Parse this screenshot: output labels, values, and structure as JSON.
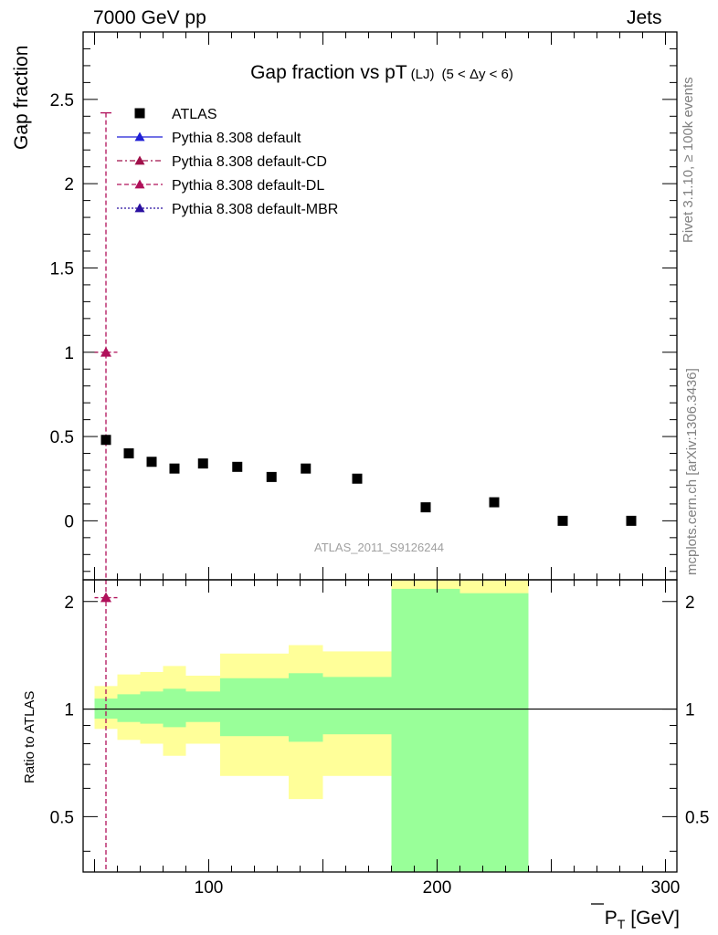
{
  "header": {
    "left": "7000 GeV pp",
    "right": "Jets"
  },
  "side_labels": {
    "rivet": "Rivet 3.1.10, ≥ 100k events",
    "mcplots": "mcplots.cern.ch [arXiv:1306.3436]"
  },
  "chart_data": {
    "type": "scatter",
    "title": "Gap fraction vs pT",
    "title_sub": "(LJ)",
    "title_range": "(5 < Δy < 6)",
    "xlabel": "P_T [GeV]",
    "xlabel_main": "P",
    "xlabel_sub": "T",
    "xlabel_unit": "[GeV]",
    "ylabel": "Gap fraction",
    "ratio_ylabel": "Ratio to ATLAS",
    "watermark": "ATLAS_2011_S9126244",
    "xlim": [
      45,
      305
    ],
    "ylim": [
      -0.35,
      2.9
    ],
    "ratio_ylim": [
      0.35,
      2.3
    ],
    "ratio_log": true,
    "xticks": [
      100,
      200,
      300
    ],
    "yticks": [
      0,
      0.5,
      1,
      1.5,
      2,
      2.5
    ],
    "ratio_yticks": [
      0.5,
      1,
      2
    ],
    "legend_position": "top-left",
    "legend": [
      {
        "name": "ATLAS",
        "color": "#000000",
        "marker": "square",
        "line": "none"
      },
      {
        "name": "Pythia 8.308 default",
        "color": "#1f1fd6",
        "marker": "triangle",
        "line": "solid"
      },
      {
        "name": "Pythia 8.308 default-CD",
        "color": "#a0104a",
        "marker": "triangle",
        "line": "dashdot"
      },
      {
        "name": "Pythia 8.308 default-DL",
        "color": "#b0105a",
        "marker": "triangle",
        "line": "dashed"
      },
      {
        "name": "Pythia 8.308 default-MBR",
        "color": "#2a10a0",
        "marker": "triangle",
        "line": "dotted"
      }
    ],
    "series": [
      {
        "name": "ATLAS",
        "x": [
          55,
          65,
          75,
          85,
          97.5,
          112.5,
          127.5,
          142.5,
          165,
          195,
          225,
          255,
          285
        ],
        "y": [
          0.48,
          0.4,
          0.35,
          0.31,
          0.34,
          0.32,
          0.26,
          0.31,
          0.25,
          0.08,
          0.11,
          0.0,
          0.0
        ]
      },
      {
        "name": "Pythia 8.308 default-DL",
        "x": [
          55
        ],
        "y": [
          1.0
        ],
        "xerr": [
          5
        ],
        "yerr_up": [
          1.42
        ],
        "yerr_down": [
          1.35
        ]
      }
    ],
    "ratio_series": [
      {
        "name": "Pythia 8.308 default-DL",
        "x": [
          55
        ],
        "y": [
          2.05
        ],
        "xerr": [
          5
        ]
      }
    ],
    "ratio_bands": [
      {
        "x_low": 50,
        "x_high": 60,
        "inner_low": 0.94,
        "inner_high": 1.07,
        "outer_low": 0.88,
        "outer_high": 1.16
      },
      {
        "x_low": 60,
        "x_high": 70,
        "inner_low": 0.92,
        "inner_high": 1.1,
        "outer_low": 0.82,
        "outer_high": 1.25
      },
      {
        "x_low": 70,
        "x_high": 80,
        "inner_low": 0.91,
        "inner_high": 1.12,
        "outer_low": 0.8,
        "outer_high": 1.27
      },
      {
        "x_low": 80,
        "x_high": 90,
        "inner_low": 0.89,
        "inner_high": 1.14,
        "outer_low": 0.74,
        "outer_high": 1.32
      },
      {
        "x_low": 90,
        "x_high": 105,
        "inner_low": 0.92,
        "inner_high": 1.12,
        "outer_low": 0.8,
        "outer_high": 1.24
      },
      {
        "x_low": 105,
        "x_high": 120,
        "inner_low": 0.84,
        "inner_high": 1.22,
        "outer_low": 0.65,
        "outer_high": 1.43
      },
      {
        "x_low": 120,
        "x_high": 135,
        "inner_low": 0.84,
        "inner_high": 1.22,
        "outer_low": 0.65,
        "outer_high": 1.43
      },
      {
        "x_low": 135,
        "x_high": 150,
        "inner_low": 0.81,
        "inner_high": 1.26,
        "outer_low": 0.56,
        "outer_high": 1.51
      },
      {
        "x_low": 150,
        "x_high": 180,
        "inner_low": 0.85,
        "inner_high": 1.23,
        "outer_low": 0.65,
        "outer_high": 1.45
      },
      {
        "x_low": 180,
        "x_high": 210,
        "inner_low": 0.35,
        "inner_high": 2.17,
        "outer_low": 0.35,
        "outer_high": 2.3
      },
      {
        "x_low": 210,
        "x_high": 240,
        "inner_low": 0.35,
        "inner_high": 2.11,
        "outer_low": 0.35,
        "outer_high": 2.3
      }
    ],
    "colors": {
      "inner_band": "#99ff99",
      "outer_band": "#ffff99",
      "reference_line": "#000000"
    }
  }
}
